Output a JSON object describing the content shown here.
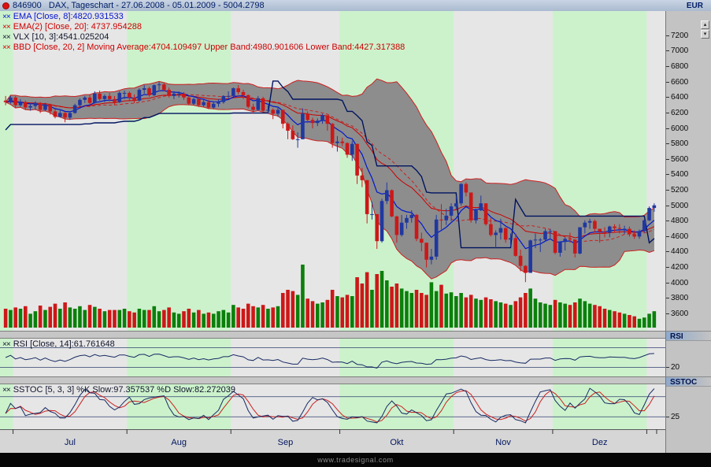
{
  "title_bar": {
    "symbol_title": "846900   DAX, Tageschart - 27.06.2008 - 05.01.2009 - 5004.2798",
    "currency": "EUR"
  },
  "legend": {
    "items": [
      {
        "icon": "××",
        "text": "EMA [Close, 8]:4820.931533",
        "color": "#0014cc"
      },
      {
        "icon": "××",
        "text": "EMA(2) [Close, 20]: 4737.954288",
        "color": "#cc0000"
      },
      {
        "icon": "××",
        "text": "VLX [10, 3]:4541.025204",
        "color": "#10142a"
      },
      {
        "icon": "××",
        "text": "BBD [Close, 20, 2] Moving Average:4704.109497 Upper Band:4980.901606 Lower Band:4427.317388",
        "color": "#cc0000"
      }
    ]
  },
  "rsi_panel": {
    "icon": "××",
    "legend": "RSI [Close, 14]:61.761648",
    "header": "RSI",
    "tick_label": "20",
    "color": "#10142a"
  },
  "sstoc_panel": {
    "icon": "××",
    "legend": "SSTOC [5, 3, 3] %K Slow:97.357537 %D Slow:82.272039",
    "header": "SSTOC",
    "tick_label": "25",
    "color": "#10142a"
  },
  "footer": {
    "watermark": "www.tradesignal.com"
  },
  "chart_data": {
    "type": "candlestick",
    "instrument": "DAX",
    "instrument_id": "846900",
    "period_label": "Tageschart",
    "date_range": "27.06.2008 - 05.01.2009",
    "last_price": 5004.2798,
    "y_ticks": [
      7200,
      7000,
      6800,
      6600,
      6400,
      6200,
      6000,
      5800,
      5600,
      5400,
      5200,
      5000,
      4800,
      4600,
      4400,
      4200,
      4000,
      3800,
      3600
    ],
    "y_domain": [
      3380,
      7520
    ],
    "indicator_params": {
      "ema_fast": 8,
      "ema_slow": 20,
      "bollinger": [
        20,
        2
      ],
      "vlx": [
        10,
        3
      ],
      "rsi": 14,
      "sstoc": [
        5,
        3,
        3
      ]
    },
    "rsi_gridlines": [
      80,
      20
    ],
    "sstoc_gridlines": [
      75,
      25
    ],
    "months": [
      {
        "label": "",
        "start": 0,
        "shade": "green"
      },
      {
        "label": "Jul",
        "start": 2,
        "shade": "gray"
      },
      {
        "label": "Aug",
        "start": 25,
        "shade": "green"
      },
      {
        "label": "Sep",
        "start": 46,
        "shade": "gray"
      },
      {
        "label": "Okt",
        "start": 68,
        "shade": "green"
      },
      {
        "label": "Nov",
        "start": 91,
        "shade": "gray"
      },
      {
        "label": "Dez",
        "start": 111,
        "shade": "green"
      },
      {
        "label": "",
        "start": 130,
        "shade": "gray"
      }
    ],
    "candles": [
      [
        6360,
        6420,
        6300,
        6340
      ],
      [
        6340,
        6420,
        6320,
        6400
      ],
      [
        6400,
        6420,
        6270,
        6300
      ],
      [
        6300,
        6380,
        6280,
        6340
      ],
      [
        6340,
        6360,
        6240,
        6270
      ],
      [
        6270,
        6320,
        6230,
        6290
      ],
      [
        6290,
        6350,
        6240,
        6330
      ],
      [
        6330,
        6340,
        6200,
        6240
      ],
      [
        6240,
        6330,
        6220,
        6310
      ],
      [
        6310,
        6320,
        6180,
        6220
      ],
      [
        6220,
        6250,
        6130,
        6150
      ],
      [
        6150,
        6250,
        6140,
        6200
      ],
      [
        6200,
        6210,
        6080,
        6140
      ],
      [
        6140,
        6220,
        6110,
        6200
      ],
      [
        6200,
        6320,
        6190,
        6300
      ],
      [
        6300,
        6390,
        6280,
        6370
      ],
      [
        6370,
        6420,
        6330,
        6400
      ],
      [
        6400,
        6440,
        6300,
        6330
      ],
      [
        6330,
        6480,
        6320,
        6450
      ],
      [
        6450,
        6490,
        6360,
        6380
      ],
      [
        6380,
        6440,
        6340,
        6420
      ],
      [
        6420,
        6460,
        6350,
        6380
      ],
      [
        6380,
        6420,
        6300,
        6340
      ],
      [
        6340,
        6480,
        6330,
        6460
      ],
      [
        6460,
        6490,
        6380,
        6460
      ],
      [
        6460,
        6480,
        6350,
        6400
      ],
      [
        6400,
        6440,
        6330,
        6360
      ],
      [
        6360,
        6520,
        6350,
        6500
      ],
      [
        6500,
        6560,
        6450,
        6520
      ],
      [
        6520,
        6540,
        6410,
        6430
      ],
      [
        6430,
        6570,
        6420,
        6560
      ],
      [
        6560,
        6600,
        6500,
        6570
      ],
      [
        6570,
        6590,
        6480,
        6500
      ],
      [
        6500,
        6530,
        6400,
        6420
      ],
      [
        6420,
        6480,
        6380,
        6450
      ],
      [
        6450,
        6480,
        6400,
        6450
      ],
      [
        6450,
        6470,
        6370,
        6400
      ],
      [
        6400,
        6410,
        6300,
        6320
      ],
      [
        6320,
        6400,
        6300,
        6380
      ],
      [
        6380,
        6390,
        6280,
        6300
      ],
      [
        6300,
        6370,
        6280,
        6340
      ],
      [
        6340,
        6370,
        6250,
        6270
      ],
      [
        6270,
        6340,
        6250,
        6320
      ],
      [
        6320,
        6380,
        6280,
        6340
      ],
      [
        6340,
        6430,
        6320,
        6420
      ],
      [
        6420,
        6480,
        6380,
        6420
      ],
      [
        6420,
        6530,
        6410,
        6520
      ],
      [
        6520,
        6560,
        6440,
        6470
      ],
      [
        6470,
        6500,
        6380,
        6430
      ],
      [
        6430,
        6440,
        6260,
        6280
      ],
      [
        6280,
        6320,
        6190,
        6240
      ],
      [
        6240,
        6420,
        6230,
        6390
      ],
      [
        6390,
        6410,
        6210,
        6230
      ],
      [
        6230,
        6300,
        6190,
        6240
      ],
      [
        6240,
        6260,
        6120,
        6190
      ],
      [
        6190,
        6280,
        6150,
        6240
      ],
      [
        6240,
        6240,
        6000,
        6060
      ],
      [
        6060,
        6080,
        5860,
        5970
      ],
      [
        5970,
        6040,
        5850,
        5860
      ],
      [
        5860,
        5950,
        5750,
        5860
      ],
      [
        5860,
        6260,
        5860,
        6190
      ],
      [
        6190,
        6220,
        6070,
        6110
      ],
      [
        6110,
        6140,
        6000,
        6070
      ],
      [
        6070,
        6130,
        6030,
        6100
      ],
      [
        6100,
        6190,
        6060,
        6170
      ],
      [
        6170,
        6170,
        5970,
        6060
      ],
      [
        6060,
        6070,
        5750,
        5810
      ],
      [
        5810,
        5900,
        5700,
        5830
      ],
      [
        5830,
        5880,
        5770,
        5810
      ],
      [
        5810,
        5820,
        5620,
        5660
      ],
      [
        5660,
        5840,
        5580,
        5800
      ],
      [
        5800,
        5800,
        5280,
        5390
      ],
      [
        5390,
        5490,
        5240,
        5330
      ],
      [
        5330,
        5330,
        4770,
        4890
      ],
      [
        4890,
        5050,
        4820,
        4890
      ],
      [
        4890,
        4890,
        4440,
        4540
      ],
      [
        4540,
        5090,
        4520,
        5060
      ],
      [
        5060,
        5300,
        5020,
        5200
      ],
      [
        5200,
        5210,
        4850,
        4860
      ],
      [
        4860,
        4870,
        4520,
        4620
      ],
      [
        4620,
        4880,
        4600,
        4780
      ],
      [
        4780,
        4880,
        4700,
        4840
      ],
      [
        4840,
        4940,
        4780,
        4880
      ],
      [
        4880,
        4890,
        4540,
        4570
      ],
      [
        4570,
        4650,
        4410,
        4520
      ],
      [
        4520,
        4520,
        4200,
        4300
      ],
      [
        4300,
        4440,
        4240,
        4340
      ],
      [
        4340,
        4880,
        4300,
        4820
      ],
      [
        4820,
        5020,
        4690,
        4810
      ],
      [
        4810,
        4960,
        4750,
        4870
      ],
      [
        4870,
        5030,
        4800,
        4990
      ],
      [
        4990,
        5120,
        4950,
        5030
      ],
      [
        5030,
        5290,
        5000,
        5280
      ],
      [
        5280,
        5300,
        5120,
        5170
      ],
      [
        5170,
        5170,
        4780,
        4810
      ],
      [
        4810,
        4960,
        4770,
        4940
      ],
      [
        4940,
        5130,
        4930,
        5030
      ],
      [
        5030,
        5030,
        4740,
        4760
      ],
      [
        4760,
        4840,
        4600,
        4620
      ],
      [
        4620,
        4680,
        4450,
        4650
      ],
      [
        4650,
        4830,
        4560,
        4710
      ],
      [
        4710,
        4720,
        4520,
        4560
      ],
      [
        4560,
        4640,
        4470,
        4580
      ],
      [
        4580,
        4640,
        4340,
        4350
      ],
      [
        4350,
        4430,
        4150,
        4220
      ],
      [
        4220,
        4230,
        4010,
        4130
      ],
      [
        4130,
        4560,
        4130,
        4550
      ],
      [
        4550,
        4640,
        4450,
        4560
      ],
      [
        4560,
        4580,
        4400,
        4560
      ],
      [
        4560,
        4700,
        4540,
        4670
      ],
      [
        4670,
        4700,
        4580,
        4670
      ],
      [
        4670,
        4670,
        4370,
        4390
      ],
      [
        4390,
        4540,
        4340,
        4530
      ],
      [
        4530,
        4590,
        4420,
        4570
      ],
      [
        4570,
        4650,
        4520,
        4560
      ],
      [
        4560,
        4560,
        4330,
        4380
      ],
      [
        4380,
        4720,
        4370,
        4720
      ],
      [
        4720,
        4810,
        4640,
        4780
      ],
      [
        4780,
        4830,
        4700,
        4800
      ],
      [
        4800,
        4820,
        4650,
        4700
      ],
      [
        4700,
        4700,
        4520,
        4660
      ],
      [
        4660,
        4720,
        4590,
        4650
      ],
      [
        4650,
        4740,
        4590,
        4730
      ],
      [
        4730,
        4760,
        4650,
        4710
      ],
      [
        4710,
        4760,
        4640,
        4700
      ],
      [
        4700,
        4740,
        4630,
        4700
      ],
      [
        4700,
        4730,
        4600,
        4630
      ],
      [
        4630,
        4680,
        4570,
        4600
      ],
      [
        4600,
        4690,
        4570,
        4670
      ],
      [
        4670,
        4820,
        4650,
        4810
      ],
      [
        4810,
        4990,
        4800,
        4970
      ],
      [
        4970,
        5030,
        4920,
        5004
      ]
    ],
    "volumes": [
      30,
      28,
      32,
      30,
      34,
      22,
      26,
      35,
      28,
      33,
      38,
      30,
      40,
      32,
      30,
      34,
      28,
      36,
      33,
      30,
      26,
      28,
      28,
      28,
      30,
      26,
      24,
      30,
      28,
      28,
      34,
      26,
      28,
      32,
      24,
      22,
      26,
      30,
      24,
      28,
      22,
      24,
      22,
      26,
      28,
      24,
      36,
      32,
      30,
      38,
      34,
      32,
      36,
      30,
      32,
      34,
      55,
      60,
      58,
      52,
      100,
      46,
      42,
      38,
      40,
      44,
      60,
      50,
      48,
      52,
      50,
      80,
      70,
      88,
      60,
      85,
      90,
      75,
      65,
      70,
      62,
      58,
      55,
      60,
      55,
      52,
      72,
      58,
      68,
      54,
      56,
      50,
      55,
      48,
      52,
      46,
      44,
      48,
      45,
      42,
      40,
      38,
      36,
      42,
      48,
      55,
      62,
      46,
      40,
      38,
      36,
      44,
      40,
      38,
      36,
      40,
      46,
      42,
      38,
      36,
      34,
      30,
      28,
      26,
      24,
      22,
      20,
      18,
      14,
      16,
      22,
      26
    ],
    "style": {
      "stripe_green": "#ccf2cc",
      "stripe_gray": "#e6e6e6",
      "band_fill": "#8d8d8d",
      "band_edge": "#cc2020",
      "up": "#2038a0",
      "down": "#cc1818",
      "volume_up": "#0b800b",
      "volume_down": "#cc1818",
      "ema_fast": "#0018cc",
      "ema_slow": "#cc0000",
      "vlx": "#001460",
      "rsi": "#182b63",
      "stoch_k": "#182b63",
      "stoch_d": "#cc2020",
      "grid": "#31406f",
      "axis_text": "#00155e"
    }
  }
}
